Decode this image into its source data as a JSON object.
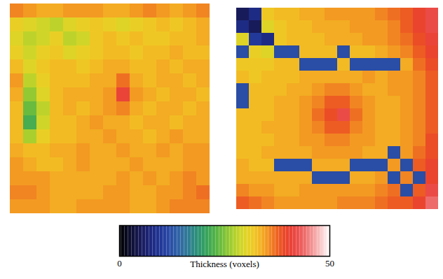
{
  "chart_data": {
    "type": "heatmap",
    "tick_labels": false,
    "panels": [
      {
        "cells": [
          [
            36,
            35,
            34,
            34,
            35,
            35,
            35,
            34,
            34,
            35,
            36,
            35,
            34,
            35,
            36
          ],
          [
            31,
            30,
            29,
            28,
            30,
            31,
            32,
            31,
            30,
            31,
            32,
            33,
            32,
            33,
            34
          ],
          [
            30,
            28,
            29,
            31,
            28,
            29,
            32,
            33,
            32,
            33,
            32,
            32,
            33,
            33,
            34
          ],
          [
            31,
            29,
            31,
            32,
            30,
            31,
            32,
            33,
            33,
            32,
            33,
            33,
            34,
            33,
            33
          ],
          [
            33,
            30,
            32,
            33,
            33,
            32,
            33,
            34,
            34,
            33,
            33,
            34,
            33,
            34,
            34
          ],
          [
            35,
            28,
            31,
            33,
            33,
            33,
            34,
            34,
            37,
            34,
            33,
            34,
            34,
            33,
            34
          ],
          [
            34,
            26,
            30,
            33,
            34,
            34,
            34,
            35,
            41,
            35,
            34,
            33,
            34,
            34,
            33
          ],
          [
            33,
            24,
            28,
            33,
            34,
            33,
            34,
            35,
            36,
            34,
            33,
            34,
            34,
            33,
            34
          ],
          [
            33,
            22,
            29,
            33,
            33,
            34,
            35,
            34,
            34,
            33,
            34,
            34,
            33,
            34,
            34
          ],
          [
            33,
            27,
            31,
            33,
            33,
            34,
            34,
            35,
            34,
            34,
            33,
            34,
            35,
            34,
            34
          ],
          [
            34,
            33,
            33,
            34,
            34,
            35,
            34,
            34,
            35,
            34,
            34,
            35,
            34,
            35,
            35
          ],
          [
            35,
            34,
            33,
            33,
            34,
            35,
            34,
            34,
            34,
            35,
            34,
            34,
            34,
            35,
            35
          ],
          [
            35,
            35,
            35,
            34,
            34,
            34,
            34,
            34,
            35,
            34,
            35,
            34,
            35,
            36,
            35
          ],
          [
            36,
            36,
            35,
            34,
            34,
            34,
            34,
            35,
            35,
            34,
            34,
            35,
            35,
            36,
            37
          ],
          [
            35,
            35,
            35,
            34,
            34,
            35,
            35,
            35,
            35,
            34,
            34,
            35,
            36,
            36,
            36
          ]
        ]
      },
      {
        "cells": [
          [
            5,
            8,
            32,
            33,
            33,
            34,
            34,
            35,
            35,
            35,
            35,
            36,
            37,
            38,
            40,
            42
          ],
          [
            8,
            5,
            30,
            32,
            33,
            33,
            34,
            34,
            34,
            35,
            35,
            35,
            36,
            38,
            40,
            42
          ],
          [
            30,
            10,
            8,
            32,
            33,
            33,
            33,
            34,
            34,
            34,
            35,
            35,
            36,
            37,
            39,
            41
          ],
          [
            12,
            31,
            30,
            12,
            12,
            33,
            33,
            33,
            12,
            33,
            33,
            34,
            35,
            36,
            38,
            40
          ],
          [
            32,
            32,
            32,
            33,
            33,
            12,
            12,
            12,
            33,
            12,
            12,
            12,
            12,
            34,
            37,
            39
          ],
          [
            33,
            32,
            33,
            33,
            33,
            34,
            34,
            34,
            34,
            34,
            35,
            34,
            35,
            35,
            36,
            38
          ],
          [
            12,
            33,
            33,
            33,
            34,
            34,
            35,
            36,
            36,
            35,
            34,
            34,
            35,
            35,
            36,
            38
          ],
          [
            12,
            33,
            33,
            34,
            34,
            35,
            36,
            38,
            38,
            36,
            35,
            34,
            34,
            35,
            36,
            38
          ],
          [
            33,
            33,
            33,
            34,
            34,
            35,
            37,
            39,
            42,
            37,
            35,
            34,
            34,
            35,
            36,
            38
          ],
          [
            33,
            33,
            34,
            34,
            34,
            35,
            36,
            38,
            38,
            36,
            35,
            34,
            34,
            35,
            36,
            38
          ],
          [
            33,
            33,
            33,
            34,
            34,
            35,
            35,
            36,
            36,
            35,
            35,
            34,
            34,
            35,
            36,
            39
          ],
          [
            33,
            33,
            34,
            34,
            34,
            34,
            35,
            35,
            35,
            35,
            34,
            34,
            12,
            35,
            37,
            39
          ],
          [
            34,
            33,
            33,
            12,
            12,
            12,
            34,
            34,
            34,
            12,
            12,
            12,
            35,
            12,
            38,
            40
          ],
          [
            34,
            34,
            34,
            34,
            34,
            34,
            12,
            12,
            12,
            34,
            34,
            35,
            12,
            36,
            12,
            40
          ],
          [
            36,
            35,
            35,
            34,
            34,
            35,
            35,
            35,
            35,
            35,
            35,
            36,
            37,
            12,
            38,
            42
          ],
          [
            38,
            37,
            36,
            35,
            35,
            35,
            35,
            35,
            36,
            36,
            36,
            37,
            38,
            38,
            40,
            44
          ]
        ]
      }
    ],
    "colorbar": {
      "range": [
        0,
        50
      ],
      "ticks": [
        0,
        50
      ],
      "label": "Thickness (voxels)"
    }
  }
}
